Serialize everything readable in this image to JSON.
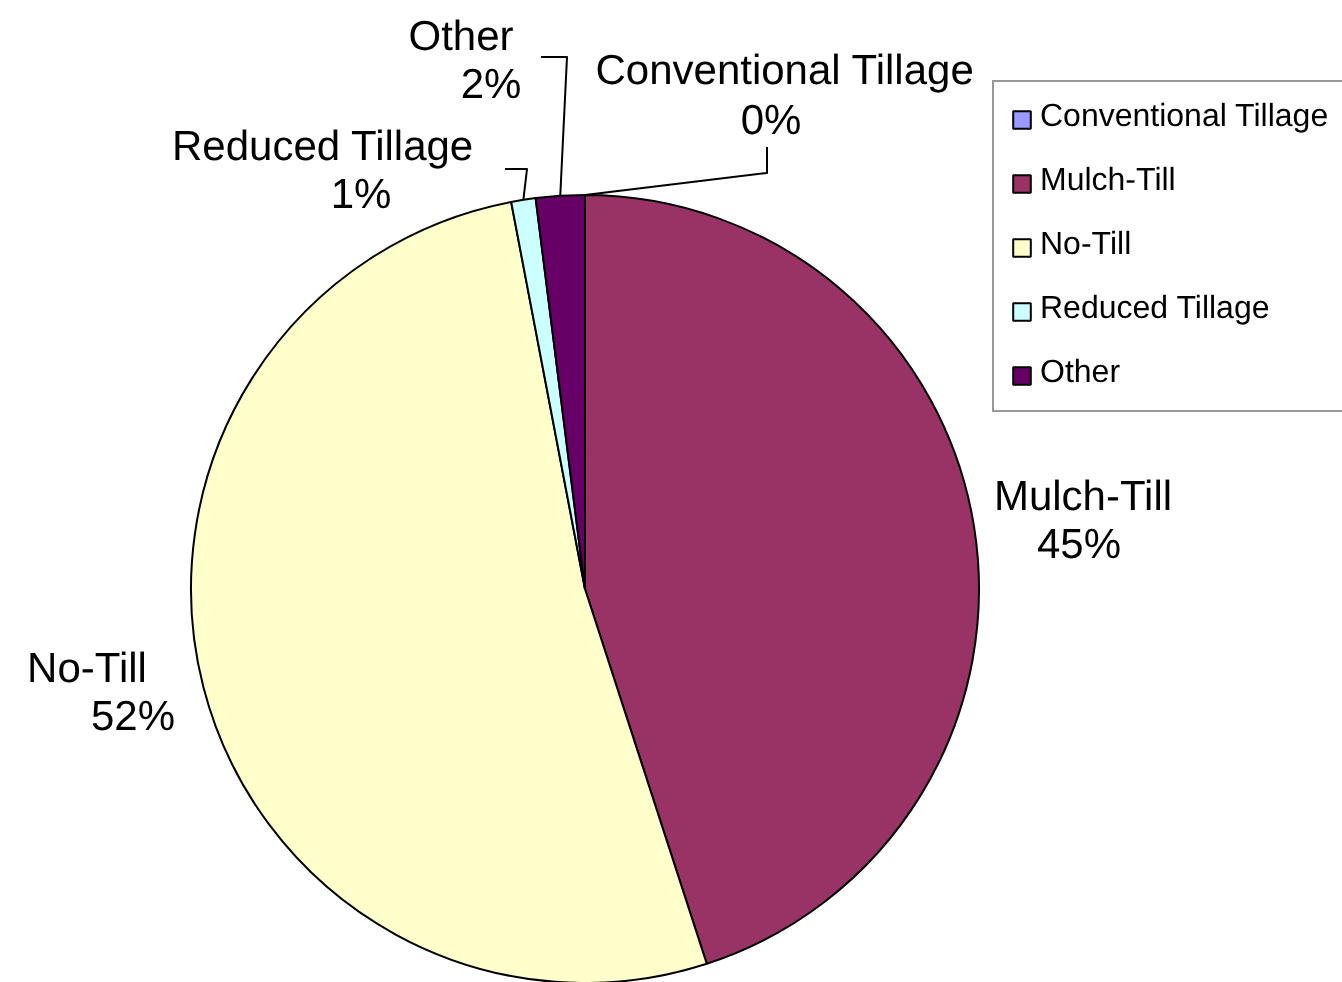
{
  "chart_data": {
    "type": "pie",
    "categories": [
      "Conventional Tillage",
      "Mulch-Till",
      "No-Till",
      "Reduced Tillage",
      "Other"
    ],
    "values": [
      0,
      45,
      52,
      1,
      2
    ],
    "colors": [
      "#9999ff",
      "#993366",
      "#ffffcc",
      "#ccffff",
      "#660066"
    ],
    "value_labels": [
      "0%",
      "45%",
      "52%",
      "1%",
      "2%"
    ],
    "legend": "top right"
  }
}
